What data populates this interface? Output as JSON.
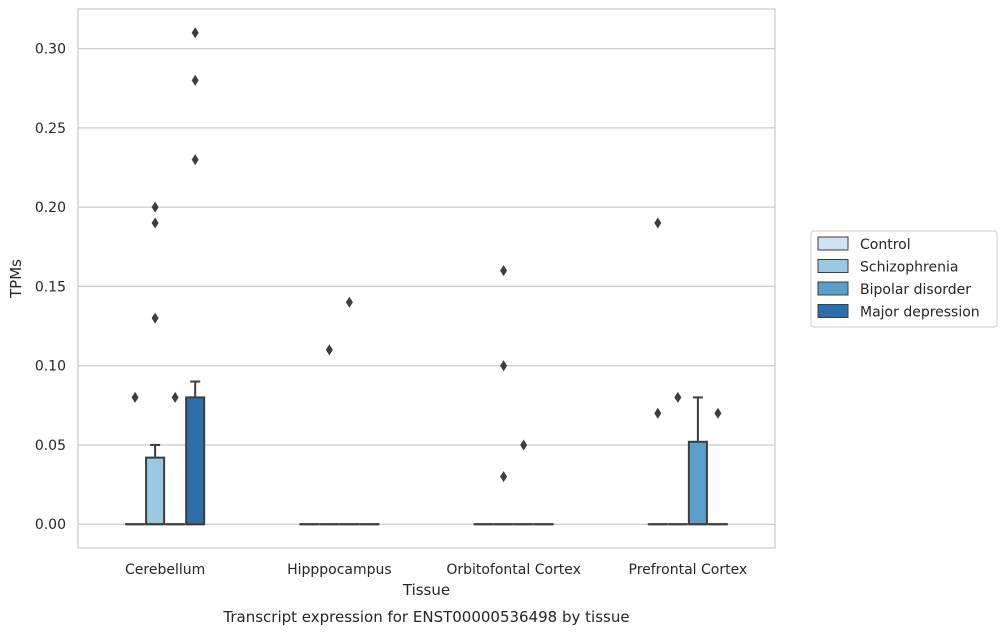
{
  "caption": "Transcript expression for ENST00000536498 by tissue",
  "chart_data": {
    "type": "box",
    "xlabel": "Tissue",
    "ylabel": "TPMs",
    "ylim": [
      -0.015,
      0.325
    ],
    "yticks": [
      0.0,
      0.05,
      0.1,
      0.15,
      0.2,
      0.25,
      0.3
    ],
    "ytick_labels": [
      "0.00",
      "0.05",
      "0.10",
      "0.15",
      "0.20",
      "0.25",
      "0.30"
    ],
    "grid": "horizontal",
    "legend_position": "right",
    "categories": [
      "Cerebellum",
      "Hipppocampus",
      "Orbitofontal Cortex",
      "Prefrontal Cortex"
    ],
    "series": [
      {
        "name": "Control",
        "color": "#d1e3f3",
        "boxes": [
          {
            "q1": 0,
            "median": 0,
            "q3": 0,
            "whislo": 0,
            "whishi": 0,
            "fliers": [
              0.08
            ]
          },
          {
            "q1": 0,
            "median": 0,
            "q3": 0,
            "whislo": 0,
            "whishi": 0,
            "fliers": []
          },
          {
            "q1": 0,
            "median": 0,
            "q3": 0,
            "whislo": 0,
            "whishi": 0,
            "fliers": []
          },
          {
            "q1": 0,
            "median": 0,
            "q3": 0,
            "whislo": 0,
            "whishi": 0,
            "fliers": [
              0.19,
              0.07
            ]
          }
        ]
      },
      {
        "name": "Schizophrenia",
        "color": "#9ac8e0",
        "boxes": [
          {
            "q1": 0,
            "median": 0,
            "q3": 0.042,
            "whislo": 0,
            "whishi": 0.05,
            "fliers": [
              0.13,
              0.19,
              0.2
            ]
          },
          {
            "q1": 0,
            "median": 0,
            "q3": 0,
            "whislo": 0,
            "whishi": 0,
            "fliers": [
              0.11
            ]
          },
          {
            "q1": 0,
            "median": 0,
            "q3": 0,
            "whislo": 0,
            "whishi": 0,
            "fliers": [
              0.03,
              0.1,
              0.16
            ]
          },
          {
            "q1": 0,
            "median": 0,
            "q3": 0,
            "whislo": 0,
            "whishi": 0,
            "fliers": [
              0.08
            ]
          }
        ]
      },
      {
        "name": "Bipolar disorder",
        "color": "#5a9ec9",
        "boxes": [
          {
            "q1": 0,
            "median": 0,
            "q3": 0,
            "whislo": 0,
            "whishi": 0,
            "fliers": [
              0.08
            ]
          },
          {
            "q1": 0,
            "median": 0,
            "q3": 0,
            "whislo": 0,
            "whishi": 0,
            "fliers": [
              0.14
            ]
          },
          {
            "q1": 0,
            "median": 0,
            "q3": 0,
            "whislo": 0,
            "whishi": 0,
            "fliers": [
              0.05
            ]
          },
          {
            "q1": 0,
            "median": 0,
            "q3": 0.052,
            "whislo": 0,
            "whishi": 0.08,
            "fliers": []
          }
        ]
      },
      {
        "name": "Major depression",
        "color": "#2c6faa",
        "boxes": [
          {
            "q1": 0,
            "median": 0,
            "q3": 0.08,
            "whislo": 0,
            "whishi": 0.09,
            "fliers": [
              0.23,
              0.28,
              0.31
            ]
          },
          {
            "q1": 0,
            "median": 0,
            "q3": 0,
            "whislo": 0,
            "whishi": 0,
            "fliers": []
          },
          {
            "q1": 0,
            "median": 0,
            "q3": 0,
            "whislo": 0,
            "whishi": 0,
            "fliers": []
          },
          {
            "q1": 0,
            "median": 0,
            "q3": 0,
            "whislo": 0,
            "whishi": 0,
            "fliers": [
              0.07
            ]
          }
        ]
      }
    ]
  }
}
